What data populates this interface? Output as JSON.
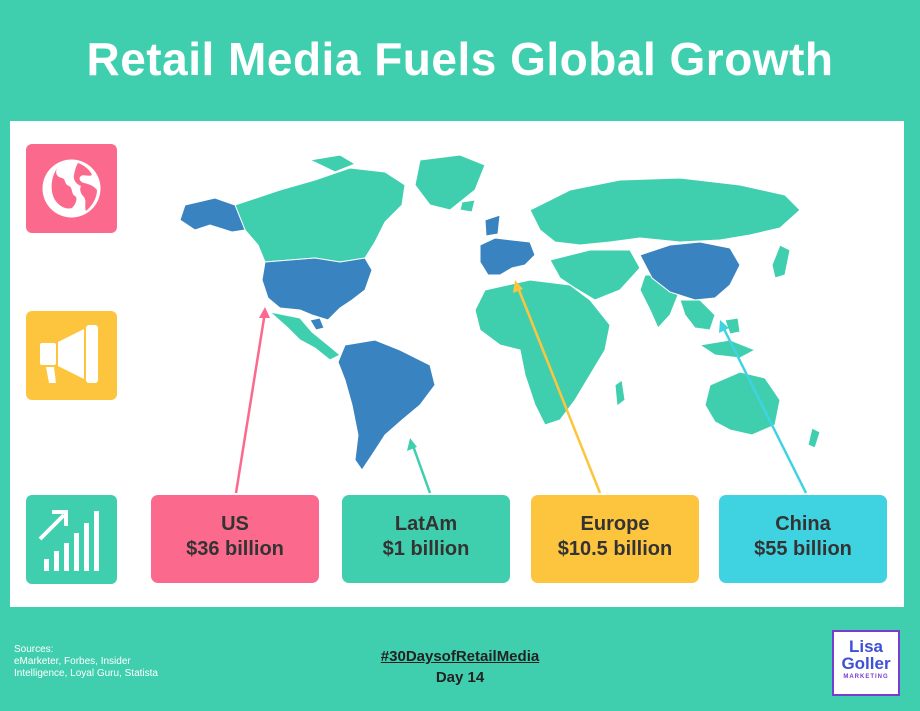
{
  "title": "Retail Media Fuels Global Growth",
  "icons": {
    "globe": "globe-icon",
    "megaphone": "megaphone-icon",
    "growth": "growth-chart-icon"
  },
  "stats": [
    {
      "region": "US",
      "value": "$36 billion",
      "color": "#fb6a8c"
    },
    {
      "region": "LatAm",
      "value": "$1 billion",
      "color": "#40cfae"
    },
    {
      "region": "Europe",
      "value": "$10.5 billion",
      "color": "#fdc53e"
    },
    {
      "region": "China",
      "value": "$55 billion",
      "color": "#3fd3e2"
    }
  ],
  "colors": {
    "background": "#40cfae",
    "map_land": "#40cfae",
    "map_highlight": "#3a83c1"
  },
  "sources": {
    "label": "Sources:",
    "text": "eMarketer, Forbes, Insider Intelligence, Loyal Guru, Statista"
  },
  "footer": {
    "hashtag": "#30DaysofRetailMedia",
    "day": "Day 14"
  },
  "logo": {
    "line1": "Lisa",
    "line2": "Goller",
    "line3": "MARKETING"
  }
}
